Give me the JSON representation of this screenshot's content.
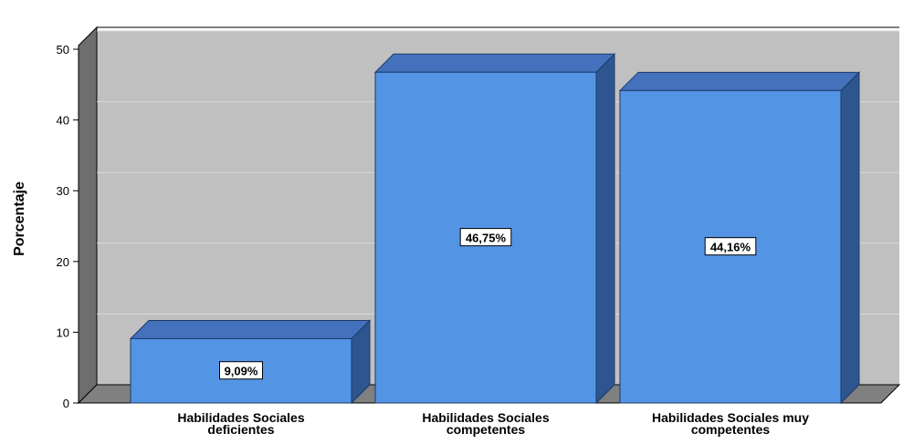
{
  "chart_data": {
    "type": "bar",
    "style": "3d",
    "categories": [
      [
        "Habilidades Sociales",
        "deficientes"
      ],
      [
        "Habilidades Sociales",
        "competentes"
      ],
      [
        "Habilidades Sociales muy",
        "competentes"
      ]
    ],
    "values": [
      9.09,
      46.75,
      44.16
    ],
    "data_labels": [
      "9,09%",
      "46,75%",
      "44,16%"
    ],
    "ylabel": "Porcentaje",
    "xlabel": "",
    "ylim": [
      0,
      50
    ],
    "yticks": [
      0,
      10,
      20,
      30,
      40,
      50
    ],
    "grid": true,
    "colors": {
      "bar_front": "#5394E5",
      "bar_top": "#4371BC",
      "bar_side": "#2F5590",
      "back_wall": "#C0C0C0",
      "side_wall": "#6E6E6E",
      "floor": "#808080",
      "gridline": "#D9D9D9"
    }
  }
}
